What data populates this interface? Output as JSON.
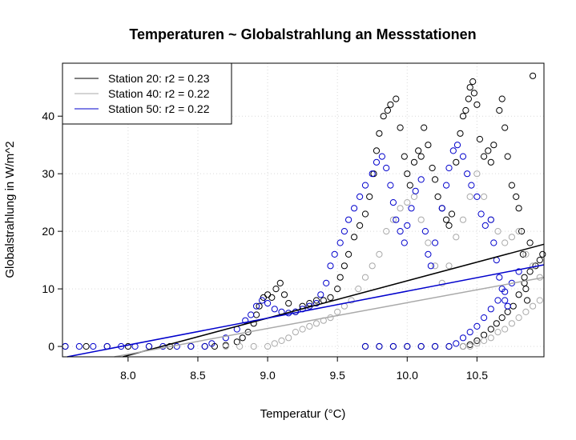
{
  "chart_data": {
    "type": "scatter",
    "title": "Temperaturen ~ Globalstrahlung an Messstationen",
    "xlabel": "Temperatur (°C)",
    "ylabel": "Globalstrahlung in W/m^2",
    "xlim": [
      7.53,
      10.98
    ],
    "ylim": [
      -1.8,
      49.2
    ],
    "x_ticks": [
      "8.0",
      "8.5",
      "9.0",
      "9.5",
      "10.0",
      "10.5"
    ],
    "y_ticks": [
      "0",
      "10",
      "20",
      "30",
      "40"
    ],
    "grid": true,
    "legend_position": "top-left",
    "series": [
      {
        "name": "Station 20: r2 = 0.23",
        "color": "#000000",
        "marker": "open-circle",
        "fit": {
          "slope": 6.48,
          "intercept": -53.4
        },
        "points": [
          [
            7.55,
            0
          ],
          [
            7.7,
            0
          ],
          [
            7.85,
            0
          ],
          [
            8.0,
            0
          ],
          [
            8.15,
            0
          ],
          [
            8.3,
            0
          ],
          [
            8.45,
            0
          ],
          [
            8.55,
            0
          ],
          [
            8.62,
            0
          ],
          [
            8.7,
            0.2
          ],
          [
            8.78,
            0.8
          ],
          [
            8.82,
            1.5
          ],
          [
            8.86,
            2.5
          ],
          [
            8.9,
            4
          ],
          [
            8.92,
            5.5
          ],
          [
            8.94,
            7
          ],
          [
            8.97,
            8.5
          ],
          [
            9.0,
            9
          ],
          [
            9.03,
            8.5
          ],
          [
            9.06,
            10
          ],
          [
            9.09,
            11
          ],
          [
            9.12,
            9
          ],
          [
            9.15,
            7.5
          ],
          [
            9.2,
            6
          ],
          [
            9.25,
            7
          ],
          [
            9.3,
            7.5
          ],
          [
            9.35,
            8
          ],
          [
            9.4,
            8
          ],
          [
            9.45,
            8.5
          ],
          [
            9.5,
            10
          ],
          [
            9.52,
            12
          ],
          [
            9.55,
            14
          ],
          [
            9.58,
            16
          ],
          [
            9.62,
            19
          ],
          [
            9.66,
            21
          ],
          [
            9.7,
            23
          ],
          [
            9.73,
            26
          ],
          [
            9.76,
            30
          ],
          [
            9.78,
            34
          ],
          [
            9.8,
            37
          ],
          [
            9.83,
            40
          ],
          [
            9.86,
            41
          ],
          [
            9.88,
            42
          ],
          [
            9.92,
            43
          ],
          [
            9.95,
            38
          ],
          [
            9.98,
            33
          ],
          [
            10.0,
            30
          ],
          [
            10.02,
            28
          ],
          [
            10.05,
            32
          ],
          [
            10.08,
            34
          ],
          [
            10.1,
            33
          ],
          [
            10.12,
            38
          ],
          [
            10.15,
            35
          ],
          [
            10.18,
            31
          ],
          [
            10.2,
            29
          ],
          [
            10.22,
            26
          ],
          [
            10.25,
            24
          ],
          [
            10.28,
            22
          ],
          [
            10.3,
            21
          ],
          [
            10.32,
            23
          ],
          [
            10.35,
            32
          ],
          [
            10.38,
            37
          ],
          [
            10.4,
            40
          ],
          [
            10.42,
            41
          ],
          [
            10.44,
            43
          ],
          [
            10.45,
            45
          ],
          [
            10.47,
            46
          ],
          [
            10.48,
            44
          ],
          [
            10.5,
            42
          ],
          [
            10.52,
            36
          ],
          [
            10.55,
            33
          ],
          [
            10.58,
            34
          ],
          [
            10.6,
            32
          ],
          [
            10.62,
            35
          ],
          [
            10.66,
            41
          ],
          [
            10.68,
            43
          ],
          [
            10.7,
            38
          ],
          [
            10.72,
            33
          ],
          [
            10.75,
            28
          ],
          [
            10.78,
            26
          ],
          [
            10.8,
            24
          ],
          [
            10.82,
            20
          ],
          [
            10.83,
            16
          ],
          [
            10.84,
            12
          ],
          [
            10.85,
            10
          ],
          [
            10.86,
            8
          ],
          [
            10.88,
            18
          ],
          [
            10.9,
            47
          ],
          [
            9.7,
            0
          ],
          [
            9.8,
            0
          ],
          [
            9.9,
            0
          ],
          [
            10.0,
            0
          ],
          [
            10.1,
            0
          ],
          [
            10.2,
            0
          ],
          [
            10.3,
            0
          ],
          [
            10.4,
            0
          ],
          [
            10.45,
            0.3
          ],
          [
            10.5,
            1
          ],
          [
            10.55,
            2
          ],
          [
            10.6,
            3
          ],
          [
            10.64,
            4
          ],
          [
            10.68,
            5
          ],
          [
            10.72,
            6
          ],
          [
            10.76,
            7
          ],
          [
            10.8,
            9
          ],
          [
            10.84,
            11
          ],
          [
            10.88,
            13
          ],
          [
            10.92,
            14
          ],
          [
            10.95,
            15
          ],
          [
            10.97,
            16
          ]
        ]
      },
      {
        "name": "Station 40: r2 = 0.22",
        "color": "#a9a9a9",
        "marker": "open-circle",
        "fit": {
          "slope": 4.48,
          "intercept": -37.2
        },
        "points": [
          [
            8.7,
            0
          ],
          [
            8.8,
            0
          ],
          [
            8.9,
            0
          ],
          [
            9.0,
            0
          ],
          [
            9.05,
            0.5
          ],
          [
            9.1,
            1
          ],
          [
            9.15,
            1.5
          ],
          [
            9.2,
            2.5
          ],
          [
            9.25,
            3
          ],
          [
            9.3,
            3.5
          ],
          [
            9.35,
            4
          ],
          [
            9.4,
            4.5
          ],
          [
            9.45,
            5
          ],
          [
            9.5,
            6
          ],
          [
            9.55,
            7
          ],
          [
            9.6,
            8
          ],
          [
            9.65,
            10
          ],
          [
            9.7,
            12
          ],
          [
            9.75,
            14
          ],
          [
            9.8,
            16
          ],
          [
            9.85,
            20
          ],
          [
            9.9,
            22
          ],
          [
            9.95,
            24
          ],
          [
            10.0,
            25
          ],
          [
            10.05,
            26
          ],
          [
            10.1,
            22
          ],
          [
            10.15,
            18
          ],
          [
            10.2,
            14
          ],
          [
            10.25,
            11
          ],
          [
            10.3,
            14
          ],
          [
            10.35,
            19
          ],
          [
            10.4,
            22
          ],
          [
            10.45,
            26
          ],
          [
            10.5,
            30
          ],
          [
            10.55,
            26
          ],
          [
            10.6,
            22
          ],
          [
            10.65,
            20
          ],
          [
            10.7,
            18
          ],
          [
            10.75,
            19
          ],
          [
            10.8,
            20
          ],
          [
            10.85,
            16
          ],
          [
            10.9,
            14
          ],
          [
            10.95,
            12
          ],
          [
            10.4,
            0
          ],
          [
            10.45,
            0
          ],
          [
            10.5,
            0.5
          ],
          [
            10.55,
            1
          ],
          [
            10.6,
            1.5
          ],
          [
            10.65,
            2.5
          ],
          [
            10.7,
            3
          ],
          [
            10.75,
            4
          ],
          [
            10.8,
            5
          ],
          [
            10.85,
            6
          ],
          [
            10.9,
            7
          ],
          [
            10.95,
            8
          ]
        ]
      },
      {
        "name": "Station 50: r2 = 0.22",
        "color": "#0000cc",
        "marker": "open-circle",
        "fit": {
          "slope": 4.68,
          "intercept": -37.2
        },
        "points": [
          [
            7.55,
            0
          ],
          [
            7.65,
            0
          ],
          [
            7.75,
            0
          ],
          [
            7.85,
            0
          ],
          [
            7.95,
            0
          ],
          [
            8.05,
            0
          ],
          [
            8.15,
            0
          ],
          [
            8.25,
            0
          ],
          [
            8.35,
            0
          ],
          [
            8.45,
            0
          ],
          [
            8.55,
            0
          ],
          [
            8.6,
            0.5
          ],
          [
            8.7,
            1.5
          ],
          [
            8.78,
            3
          ],
          [
            8.84,
            4.5
          ],
          [
            8.88,
            5.5
          ],
          [
            8.92,
            7
          ],
          [
            8.96,
            8
          ],
          [
            9.0,
            7.5
          ],
          [
            9.05,
            6.5
          ],
          [
            9.1,
            6
          ],
          [
            9.15,
            5.8
          ],
          [
            9.2,
            6
          ],
          [
            9.25,
            6.5
          ],
          [
            9.3,
            7
          ],
          [
            9.35,
            7.5
          ],
          [
            9.38,
            9
          ],
          [
            9.42,
            11
          ],
          [
            9.45,
            14
          ],
          [
            9.48,
            16
          ],
          [
            9.52,
            18
          ],
          [
            9.55,
            20
          ],
          [
            9.58,
            22
          ],
          [
            9.62,
            24
          ],
          [
            9.66,
            26
          ],
          [
            9.7,
            28
          ],
          [
            9.75,
            30
          ],
          [
            9.78,
            32
          ],
          [
            9.82,
            33
          ],
          [
            9.85,
            31
          ],
          [
            9.88,
            28
          ],
          [
            9.9,
            25
          ],
          [
            9.92,
            22
          ],
          [
            9.95,
            20
          ],
          [
            9.98,
            18
          ],
          [
            10.0,
            21
          ],
          [
            10.03,
            24
          ],
          [
            10.06,
            27
          ],
          [
            10.1,
            29
          ],
          [
            10.13,
            20
          ],
          [
            10.15,
            16
          ],
          [
            10.17,
            14
          ],
          [
            10.2,
            18
          ],
          [
            10.25,
            24
          ],
          [
            10.28,
            28
          ],
          [
            10.3,
            31
          ],
          [
            10.33,
            34
          ],
          [
            10.36,
            35
          ],
          [
            10.4,
            33
          ],
          [
            10.43,
            30
          ],
          [
            10.46,
            28
          ],
          [
            10.5,
            26
          ],
          [
            10.53,
            23
          ],
          [
            10.56,
            21
          ],
          [
            10.6,
            22
          ],
          [
            10.62,
            18
          ],
          [
            10.64,
            15
          ],
          [
            10.66,
            12
          ],
          [
            10.68,
            10
          ],
          [
            10.7,
            8
          ],
          [
            10.72,
            7
          ],
          [
            9.7,
            0
          ],
          [
            9.8,
            0
          ],
          [
            9.9,
            0
          ],
          [
            10.0,
            0
          ],
          [
            10.1,
            0
          ],
          [
            10.2,
            0
          ],
          [
            10.3,
            0
          ],
          [
            10.35,
            0.5
          ],
          [
            10.4,
            1.5
          ],
          [
            10.45,
            2.5
          ],
          [
            10.5,
            3.5
          ],
          [
            10.55,
            5
          ],
          [
            10.6,
            6.5
          ],
          [
            10.65,
            8
          ],
          [
            10.7,
            9.5
          ],
          [
            10.75,
            11
          ],
          [
            10.8,
            13
          ]
        ]
      }
    ]
  }
}
